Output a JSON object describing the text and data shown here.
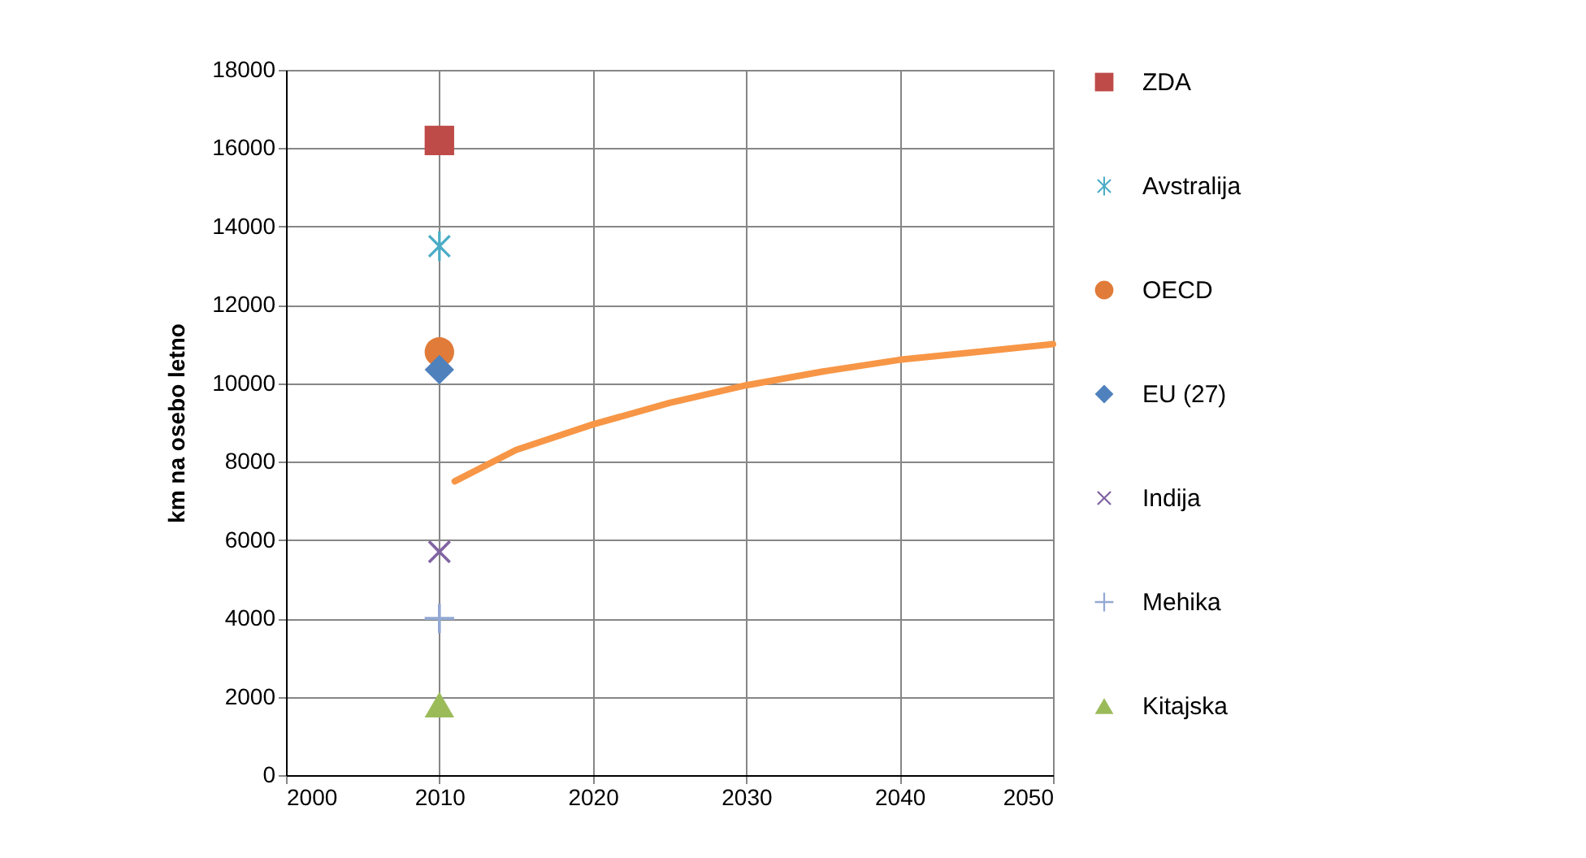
{
  "chart_data": {
    "type": "scatter",
    "ylabel": "km na osebo letno",
    "xlim": [
      2000,
      2050
    ],
    "xticks": [
      2000,
      2010,
      2020,
      2030,
      2040,
      2050
    ],
    "ylim": [
      0,
      18000
    ],
    "yticks": [
      0,
      2000,
      4000,
      6000,
      8000,
      10000,
      12000,
      14000,
      16000,
      18000
    ],
    "grid": true,
    "legend": "right",
    "series": [
      {
        "name": "ZDA",
        "color": "#be4b48",
        "marker": "square",
        "x": [
          2010
        ],
        "values": [
          16200
        ]
      },
      {
        "name": "Avstralija",
        "color": "#4bacc6",
        "marker": "star",
        "x": [
          2010
        ],
        "values": [
          13500
        ]
      },
      {
        "name": "OECD",
        "color": "#e07b39",
        "marker": "circle",
        "x": [
          2010
        ],
        "values": [
          10800
        ]
      },
      {
        "name": "EU (27)",
        "color": "#4f81bd",
        "marker": "diamond",
        "x": [
          2010
        ],
        "values": [
          10350
        ]
      },
      {
        "name": "Indija",
        "color": "#8064a2",
        "marker": "cross",
        "x": [
          2010
        ],
        "values": [
          5700
        ]
      },
      {
        "name": "Mehika",
        "color": "#93a9d4",
        "x": [
          2010
        ],
        "values": [
          4000
        ]
      },
      {
        "name": "Kitajska",
        "color": "#9bbb59",
        "marker": "triangle",
        "x": [
          2010
        ],
        "values": [
          1800
        ]
      },
      {
        "type": "line",
        "color": "#f79646",
        "marker": "none",
        "x": [
          2011,
          2015,
          2020,
          2025,
          2030,
          2035,
          2040,
          2045,
          2050
        ],
        "values": [
          7500,
          8300,
          8950,
          9500,
          9950,
          10300,
          10600,
          10800,
          11000
        ]
      }
    ]
  }
}
